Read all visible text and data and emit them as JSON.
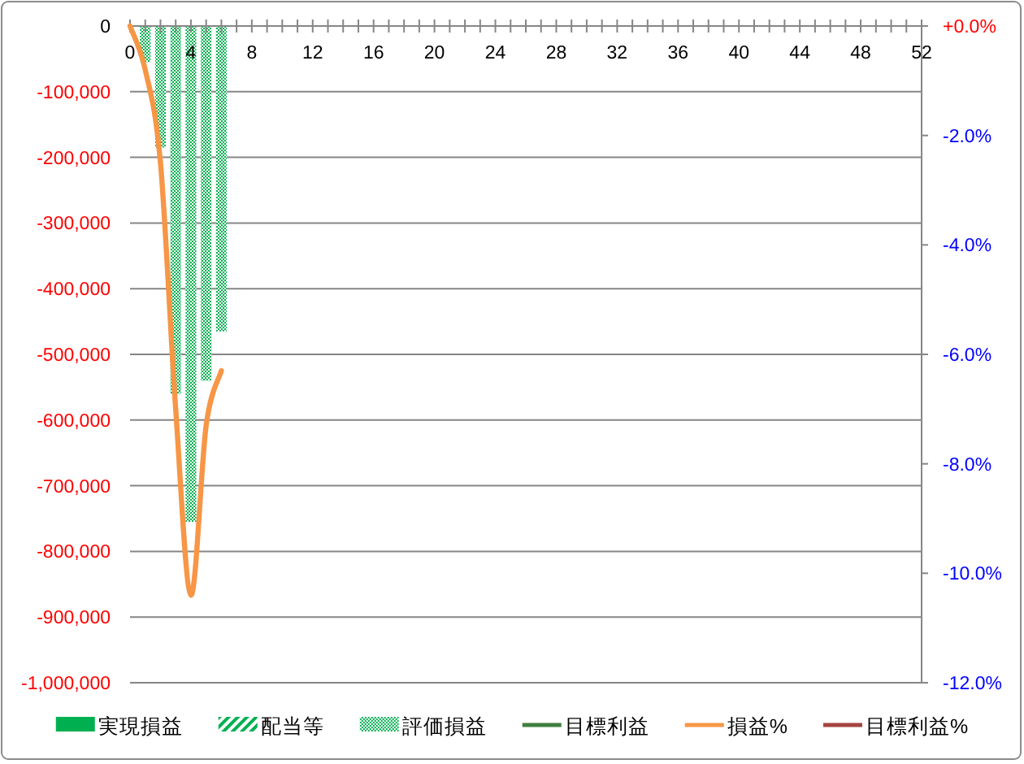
{
  "chart_data": {
    "type": "bar",
    "x": [
      1,
      2,
      3,
      4,
      5,
      6
    ],
    "xlim": [
      0,
      52
    ],
    "xticks": [
      0,
      {
        "value": 1,
        "label": null
      },
      {
        "value": 2,
        "label": null
      },
      {
        "value": 3,
        "label": null
      },
      4,
      {
        "value": 5,
        "label": null
      },
      {
        "value": 6,
        "label": null
      },
      {
        "value": 7,
        "label": null
      },
      8,
      {
        "value": 9,
        "label": null
      },
      {
        "value": 10,
        "label": null
      },
      {
        "value": 11,
        "label": null
      },
      12,
      {
        "value": 13,
        "label": null
      },
      {
        "value": 14,
        "label": null
      },
      {
        "value": 15,
        "label": null
      },
      16,
      {
        "value": 17,
        "label": null
      },
      {
        "value": 18,
        "label": null
      },
      {
        "value": 19,
        "label": null
      },
      20,
      {
        "value": 21,
        "label": null
      },
      {
        "value": 22,
        "label": null
      },
      {
        "value": 23,
        "label": null
      },
      24,
      {
        "value": 25,
        "label": null
      },
      {
        "value": 26,
        "label": null
      },
      {
        "value": 27,
        "label": null
      },
      28,
      {
        "value": 29,
        "label": null
      },
      {
        "value": 30,
        "label": null
      },
      {
        "value": 31,
        "label": null
      },
      32,
      {
        "value": 33,
        "label": null
      },
      {
        "value": 34,
        "label": null
      },
      {
        "value": 35,
        "label": null
      },
      36,
      {
        "value": 37,
        "label": null
      },
      {
        "value": 38,
        "label": null
      },
      {
        "value": 39,
        "label": null
      },
      40,
      {
        "value": 41,
        "label": null
      },
      {
        "value": 42,
        "label": null
      },
      {
        "value": 43,
        "label": null
      },
      44,
      {
        "value": 45,
        "label": null
      },
      {
        "value": 46,
        "label": null
      },
      {
        "value": 47,
        "label": null
      },
      48,
      {
        "value": 49,
        "label": null
      },
      {
        "value": 50,
        "label": null
      },
      {
        "value": 51,
        "label": null
      },
      52
    ],
    "ylim": [
      -1000000,
      0
    ],
    "yticks": [
      0,
      {
        "value": -100000,
        "label": "-100,000"
      },
      {
        "value": -200000,
        "label": "-200,000"
      },
      {
        "value": -300000,
        "label": "-300,000"
      },
      {
        "value": -400000,
        "label": "-400,000"
      },
      {
        "value": -500000,
        "label": "-500,000"
      },
      {
        "value": -600000,
        "label": "-600,000"
      },
      {
        "value": -700000,
        "label": "-700,000"
      },
      {
        "value": -800000,
        "label": "-800,000"
      },
      {
        "value": -900000,
        "label": "-900,000"
      },
      {
        "value": -1000000,
        "label": "-1,000,000"
      }
    ],
    "y2lim": [
      -12,
      0
    ],
    "y2ticks": [
      {
        "value": 0,
        "label": "+0.0%"
      },
      {
        "value": -2,
        "label": "-2.0%"
      },
      {
        "value": -4,
        "label": "-4.0%"
      },
      {
        "value": -6,
        "label": "-6.0%"
      },
      {
        "value": -8,
        "label": "-8.0%"
      },
      {
        "value": -10,
        "label": "-10.0%"
      },
      {
        "value": -12,
        "label": "-12.0%"
      }
    ],
    "grid": "y",
    "legend": "bottom",
    "series": [
      {
        "name": "実現損益",
        "color": "#00b050",
        "values": [
          null,
          null,
          null,
          null,
          null,
          null
        ]
      },
      {
        "name": "配当等",
        "color": "#00b050",
        "values": [
          null,
          null,
          null,
          null,
          null,
          null
        ]
      },
      {
        "name": "評価損益",
        "color": "#00b050",
        "values": [
          -55000,
          -185000,
          -560000,
          -755000,
          -540000,
          -465000
        ]
      },
      {
        "name": "目標利益",
        "type": "line",
        "color": "#3f7f3f",
        "values": [
          null,
          null,
          null,
          null,
          null,
          null
        ]
      },
      {
        "name": "損益%",
        "type": "line",
        "axis": "y2",
        "color": "#f79646",
        "x": [
          0,
          1,
          2,
          3,
          4,
          5,
          6
        ],
        "values": [
          0,
          -0.8,
          -2.5,
          -7.0,
          -10.4,
          -7.3,
          -6.3
        ]
      },
      {
        "name": "目標利益%",
        "type": "line",
        "axis": "y2",
        "color": "#a5443f",
        "values": [
          null,
          null,
          null,
          null,
          null,
          null
        ]
      }
    ]
  }
}
